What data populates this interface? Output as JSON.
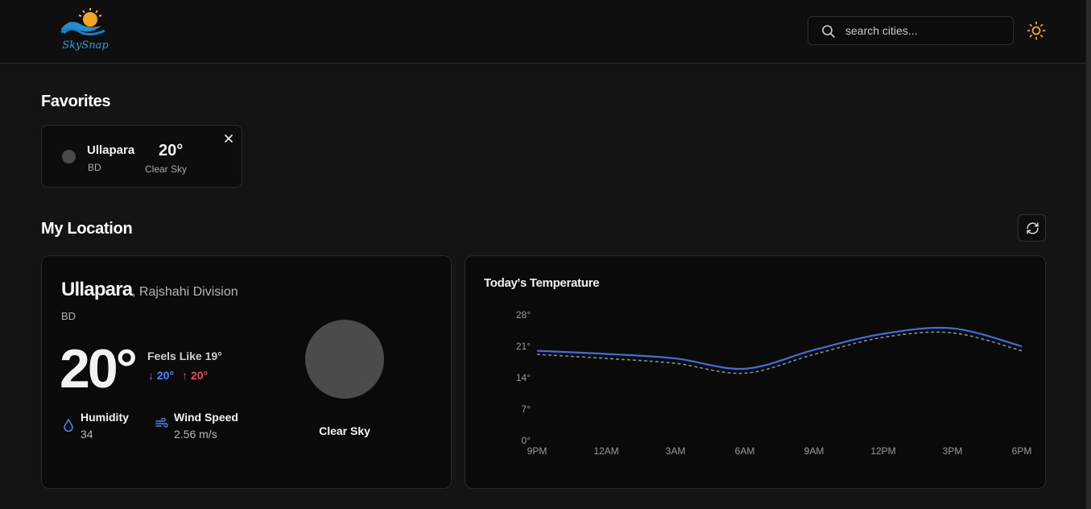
{
  "app": {
    "logo_text": "SkySnap",
    "accent_color": "#f5a623"
  },
  "header": {
    "search_placeholder": "search cities...",
    "search_icon": "search-icon",
    "theme_icon": "sun-icon"
  },
  "favorites": {
    "title": "Favorites",
    "items": [
      {
        "city": "Ullapara",
        "country": "BD",
        "temp": "20°",
        "condition": "Clear Sky"
      }
    ]
  },
  "my_location": {
    "title": "My Location",
    "city": "Ullapara",
    "region": ", Rajshahi Division",
    "country": "BD",
    "temp": "20°",
    "feels_like": "Feels Like 19°",
    "min": "↓ 20°",
    "max": "↑ 20°",
    "humidity_label": "Humidity",
    "humidity_value": "34",
    "wind_label": "Wind Speed",
    "wind_value": "2.56 m/s",
    "condition": "Clear Sky"
  },
  "chart_data": {
    "type": "line",
    "title": "Today's Temperature",
    "categories": [
      "9PM",
      "12AM",
      "3AM",
      "6AM",
      "9AM",
      "12PM",
      "3PM",
      "6PM"
    ],
    "y_ticks": [
      "0°",
      "7°",
      "14°",
      "21°",
      "28°"
    ],
    "ylim": [
      0,
      28
    ],
    "series": [
      {
        "name": "temp",
        "color": "#3b6fe0",
        "dashed": false,
        "values": [
          20,
          19.3,
          18.3,
          16,
          20.2,
          23.8,
          25,
          21
        ]
      },
      {
        "name": "feels_like",
        "color": "#8a8a8a",
        "dashed": true,
        "values": [
          19.2,
          18.3,
          17.2,
          15,
          19.2,
          23,
          24,
          20
        ]
      }
    ]
  }
}
